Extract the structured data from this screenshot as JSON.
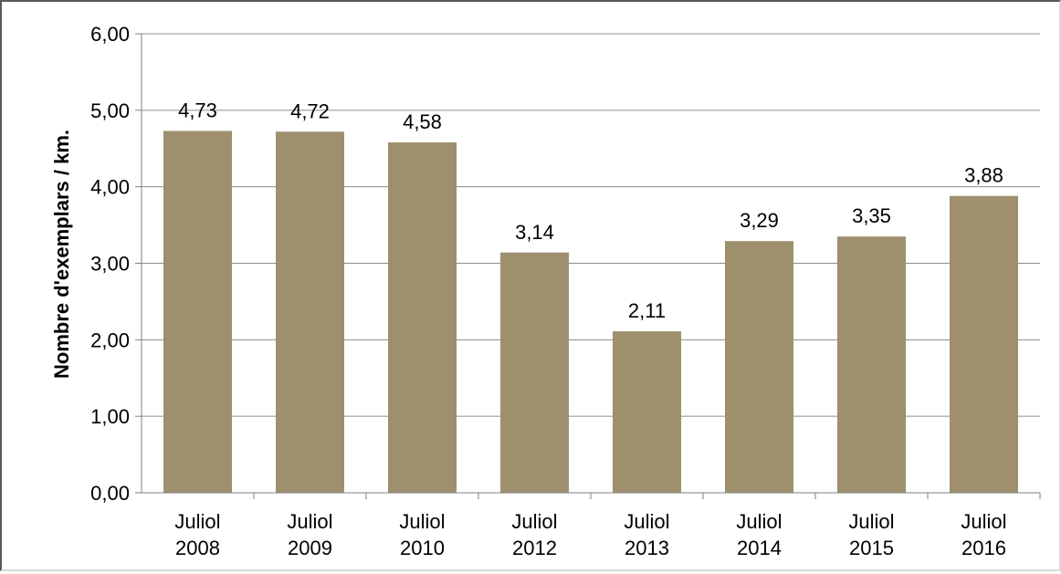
{
  "chart_data": {
    "type": "bar",
    "title": "",
    "xlabel": "",
    "ylabel": "Nombre d'exemplars / km.",
    "categories": [
      [
        "Juliol",
        "2008"
      ],
      [
        "Juliol",
        "2009"
      ],
      [
        "Juliol",
        "2010"
      ],
      [
        "Juliol",
        "2012"
      ],
      [
        "Juliol",
        "2013"
      ],
      [
        "Juliol",
        "2014"
      ],
      [
        "Juliol",
        "2015"
      ],
      [
        "Juliol",
        "2016"
      ]
    ],
    "values": [
      4.73,
      4.72,
      4.58,
      3.14,
      2.11,
      3.29,
      3.35,
      3.88
    ],
    "value_labels": [
      "4,73",
      "4,72",
      "4,58",
      "3,14",
      "2,11",
      "3,29",
      "3,35",
      "3,88"
    ],
    "ylim": [
      0,
      6
    ],
    "yticks": [
      0,
      1,
      2,
      3,
      4,
      5,
      6
    ],
    "ytick_labels": [
      "0,00",
      "1,00",
      "2,00",
      "3,00",
      "4,00",
      "5,00",
      "6,00"
    ],
    "grid": true,
    "legend": "none",
    "colors": {
      "bar": "#9e8f6d",
      "grid": "#8c8c8c",
      "axis": "#7f7f7f",
      "frame": "#595959"
    }
  }
}
